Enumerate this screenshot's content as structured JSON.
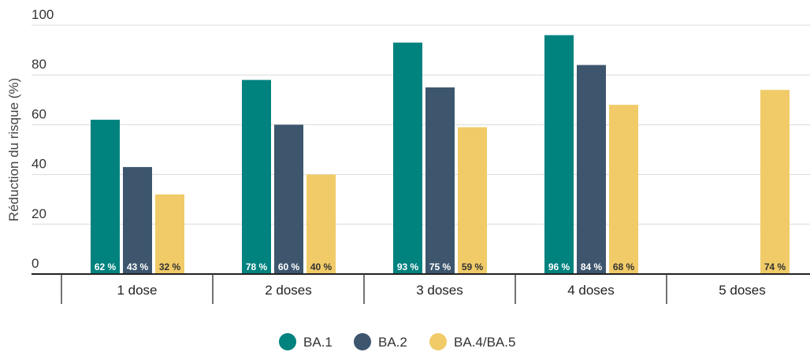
{
  "chart_data": {
    "type": "bar",
    "categories": [
      "1 dose",
      "2 doses",
      "3 doses",
      "4 doses",
      "5 doses"
    ],
    "series": [
      {
        "name": "BA.1",
        "color": "#00827F",
        "values": [
          62,
          78,
          93,
          96,
          null
        ],
        "labels": [
          "62 %",
          "78 %",
          "93 %",
          "96 %",
          ""
        ]
      },
      {
        "name": "BA.2",
        "color": "#3D566E",
        "values": [
          43,
          60,
          75,
          84,
          null
        ],
        "labels": [
          "43 %",
          "60 %",
          "75 %",
          "84 %",
          ""
        ]
      },
      {
        "name": "BA.4/BA.5",
        "color": "#F0CB68",
        "values": [
          32,
          40,
          59,
          68,
          74
        ],
        "labels": [
          "32 %",
          "40 %",
          "59 %",
          "68 %",
          "74 %"
        ]
      }
    ],
    "ylabel": "Réduction du risque (%)",
    "ylim": [
      0,
      100
    ],
    "yticks": [
      0,
      20,
      40,
      60,
      80,
      100
    ],
    "grid": true,
    "legend_position": "bottom"
  }
}
